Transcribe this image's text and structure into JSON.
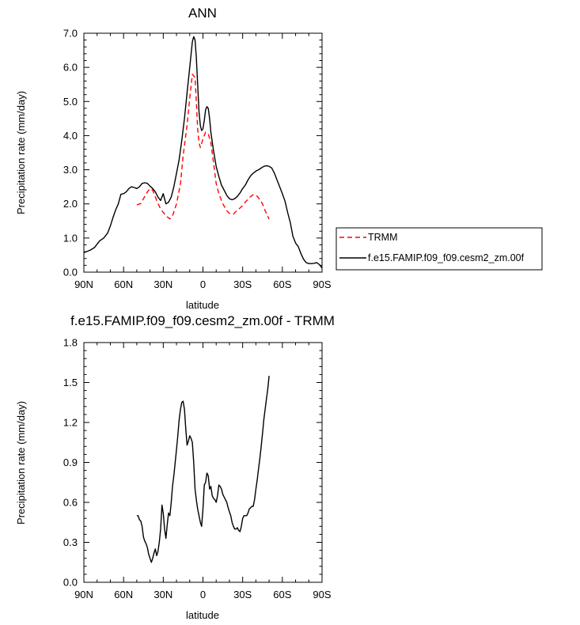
{
  "chart_data": [
    {
      "type": "line",
      "title": "ANN",
      "xlabel": "latitude",
      "ylabel": "Precipitation rate (mm/day)",
      "xlim": [
        90,
        -90
      ],
      "ylim": [
        0,
        7
      ],
      "x_ticks": [
        {
          "value": 90,
          "label": "90N"
        },
        {
          "value": 60,
          "label": "60N"
        },
        {
          "value": 30,
          "label": "30N"
        },
        {
          "value": 0,
          "label": "0"
        },
        {
          "value": -30,
          "label": "30S"
        },
        {
          "value": -60,
          "label": "60S"
        },
        {
          "value": -90,
          "label": "90S"
        }
      ],
      "y_ticks": [
        {
          "value": 0,
          "label": "0.0"
        },
        {
          "value": 1,
          "label": "1.0"
        },
        {
          "value": 2,
          "label": "2.0"
        },
        {
          "value": 3,
          "label": "3.0"
        },
        {
          "value": 4,
          "label": "4.0"
        },
        {
          "value": 5,
          "label": "5.0"
        },
        {
          "value": 6,
          "label": "6.0"
        },
        {
          "value": 7,
          "label": "7.0"
        }
      ],
      "legend": "right",
      "series": [
        {
          "name": "TRMM",
          "color": "#ff0000",
          "dash": "dashed",
          "x": [
            50,
            47,
            45,
            42,
            40,
            38,
            35,
            32,
            30,
            27,
            25,
            23,
            20,
            17,
            15,
            12,
            10,
            8,
            6,
            5,
            4,
            3,
            2,
            0,
            -2,
            -4,
            -6,
            -8,
            -10,
            -12,
            -15,
            -18,
            -20,
            -23,
            -25,
            -28,
            -30,
            -32,
            -35,
            -38,
            -40,
            -42,
            -45,
            -47,
            -50
          ],
          "y": [
            1.97,
            2.01,
            2.15,
            2.35,
            2.45,
            2.4,
            2.1,
            1.85,
            1.75,
            1.62,
            1.56,
            1.65,
            2.0,
            2.6,
            3.4,
            4.3,
            5.1,
            5.8,
            5.7,
            5.0,
            4.2,
            3.8,
            3.65,
            3.9,
            4.1,
            4.05,
            3.8,
            3.2,
            2.6,
            2.3,
            2.0,
            1.8,
            1.72,
            1.7,
            1.78,
            1.88,
            1.95,
            2.05,
            2.18,
            2.27,
            2.26,
            2.18,
            2.0,
            1.8,
            1.55
          ]
        },
        {
          "name": "f.e15.FAMIP.f09_f09.cesm2_zm.00f",
          "color": "#000000",
          "dash": "solid",
          "x": [
            90,
            88,
            85,
            82,
            80,
            78,
            75,
            72,
            70,
            68,
            66,
            64,
            62,
            60,
            58,
            56,
            54,
            52,
            50,
            48,
            46,
            44,
            42,
            40,
            38,
            36,
            34,
            32,
            30,
            28,
            26,
            24,
            22,
            20,
            18,
            16,
            14,
            12,
            10,
            8,
            7,
            6,
            5,
            4,
            3,
            2,
            1,
            0,
            -1,
            -2,
            -3,
            -4,
            -5,
            -6,
            -8,
            -10,
            -12,
            -14,
            -16,
            -18,
            -20,
            -22,
            -24,
            -26,
            -28,
            -30,
            -32,
            -34,
            -36,
            -38,
            -40,
            -42,
            -44,
            -46,
            -48,
            -50,
            -52,
            -54,
            -56,
            -58,
            -60,
            -62,
            -64,
            -66,
            -68,
            -70,
            -72,
            -74,
            -76,
            -78,
            -80,
            -82,
            -84,
            -86,
            -88,
            -90
          ],
          "y": [
            0.57,
            0.6,
            0.65,
            0.72,
            0.82,
            0.92,
            1.0,
            1.15,
            1.35,
            1.6,
            1.82,
            2.0,
            2.28,
            2.3,
            2.35,
            2.45,
            2.5,
            2.48,
            2.45,
            2.5,
            2.6,
            2.62,
            2.6,
            2.52,
            2.45,
            2.35,
            2.2,
            2.1,
            2.3,
            2.0,
            2.05,
            2.2,
            2.5,
            2.9,
            3.3,
            3.85,
            4.5,
            5.25,
            6.0,
            6.75,
            6.9,
            6.8,
            6.3,
            5.5,
            4.7,
            4.3,
            4.15,
            4.2,
            4.45,
            4.75,
            4.85,
            4.8,
            4.5,
            4.1,
            3.55,
            3.1,
            2.8,
            2.55,
            2.4,
            2.25,
            2.15,
            2.12,
            2.15,
            2.22,
            2.32,
            2.45,
            2.55,
            2.7,
            2.82,
            2.9,
            2.96,
            3.0,
            3.05,
            3.1,
            3.12,
            3.1,
            3.05,
            2.9,
            2.7,
            2.5,
            2.3,
            2.08,
            1.75,
            1.45,
            1.05,
            0.85,
            0.75,
            0.55,
            0.38,
            0.28,
            0.25,
            0.25,
            0.26,
            0.28,
            0.22,
            0.12
          ]
        }
      ]
    },
    {
      "type": "line",
      "title": "f.e15.FAMIP.f09_f09.cesm2_zm.00f - TRMM",
      "xlabel": "latitude",
      "ylabel": "Precipitation rate (mm/day)",
      "xlim": [
        90,
        -90
      ],
      "ylim": [
        0,
        1.8
      ],
      "x_ticks": [
        {
          "value": 90,
          "label": "90N"
        },
        {
          "value": 60,
          "label": "60N"
        },
        {
          "value": 30,
          "label": "30N"
        },
        {
          "value": 0,
          "label": "0"
        },
        {
          "value": -30,
          "label": "30S"
        },
        {
          "value": -60,
          "label": "60S"
        },
        {
          "value": -90,
          "label": "90S"
        }
      ],
      "y_ticks": [
        {
          "value": 0,
          "label": "0.0"
        },
        {
          "value": 0.3,
          "label": "0.3"
        },
        {
          "value": 0.6,
          "label": "0.6"
        },
        {
          "value": 0.9,
          "label": "0.9"
        },
        {
          "value": 1.2,
          "label": "1.2"
        },
        {
          "value": 1.5,
          "label": "1.5"
        },
        {
          "value": 1.8,
          "label": "1.8"
        }
      ],
      "series": [
        {
          "color": "#000000",
          "dash": "solid",
          "x": [
            50,
            49,
            48,
            47,
            46,
            45,
            44,
            43,
            42,
            41,
            40,
            39,
            38,
            37,
            36,
            35,
            34,
            33,
            32,
            31,
            30,
            29,
            28,
            27,
            26,
            25,
            24,
            23,
            22,
            21,
            20,
            19,
            18,
            17,
            16,
            15,
            14,
            13,
            12,
            11,
            10,
            9,
            8,
            7,
            6,
            5,
            4,
            3,
            2,
            1,
            0,
            -1,
            -2,
            -3,
            -4,
            -5,
            -6,
            -7,
            -8,
            -9,
            -10,
            -11,
            -12,
            -13,
            -14,
            -15,
            -16,
            -17,
            -18,
            -19,
            -20,
            -21,
            -22,
            -23,
            -24,
            -25,
            -26,
            -27,
            -28,
            -29,
            -30,
            -31,
            -32,
            -33,
            -34,
            -35,
            -36,
            -37,
            -38,
            -39,
            -40,
            -41,
            -42,
            -43,
            -44,
            -45,
            -46,
            -47,
            -48,
            -49,
            -50
          ],
          "y": [
            0.5,
            0.5,
            0.47,
            0.46,
            0.42,
            0.34,
            0.31,
            0.29,
            0.26,
            0.21,
            0.18,
            0.15,
            0.18,
            0.22,
            0.25,
            0.2,
            0.23,
            0.3,
            0.4,
            0.58,
            0.52,
            0.4,
            0.33,
            0.43,
            0.52,
            0.5,
            0.6,
            0.72,
            0.8,
            0.9,
            1.0,
            1.1,
            1.22,
            1.3,
            1.35,
            1.36,
            1.3,
            1.15,
            1.03,
            1.06,
            1.1,
            1.08,
            1.05,
            0.9,
            0.7,
            0.62,
            0.55,
            0.5,
            0.45,
            0.42,
            0.55,
            0.73,
            0.75,
            0.82,
            0.8,
            0.7,
            0.72,
            0.65,
            0.63,
            0.62,
            0.6,
            0.65,
            0.73,
            0.72,
            0.7,
            0.66,
            0.64,
            0.62,
            0.6,
            0.56,
            0.53,
            0.5,
            0.45,
            0.42,
            0.4,
            0.4,
            0.41,
            0.39,
            0.38,
            0.42,
            0.48,
            0.5,
            0.5,
            0.5,
            0.52,
            0.55,
            0.56,
            0.57,
            0.57,
            0.62,
            0.7,
            0.77,
            0.85,
            0.93,
            1.02,
            1.12,
            1.22,
            1.3,
            1.38,
            1.45,
            1.55
          ]
        }
      ]
    }
  ]
}
